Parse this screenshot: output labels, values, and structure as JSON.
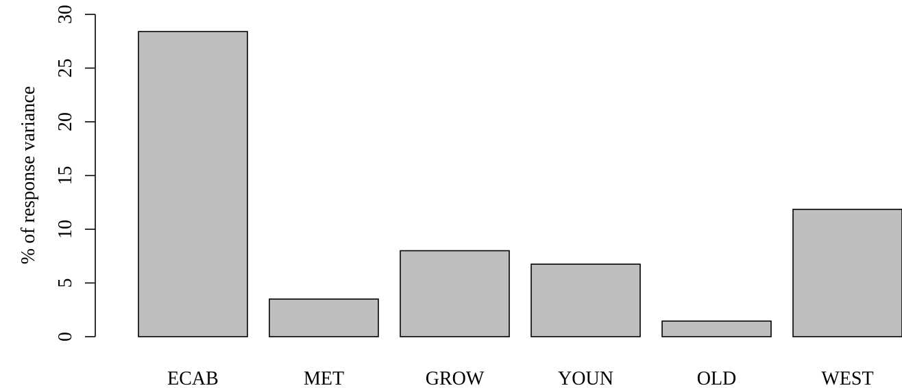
{
  "chart_data": {
    "type": "bar",
    "categories": [
      "ECAB",
      "MET",
      "GROW",
      "YOUN",
      "OLD",
      "WEST"
    ],
    "values": [
      28.4,
      3.5,
      8.0,
      6.75,
      1.45,
      11.85
    ],
    "title": "",
    "xlabel": "",
    "ylabel": "% of response variance",
    "ylim": [
      0,
      30
    ],
    "yticks": [
      0,
      5,
      10,
      15,
      20,
      25,
      30
    ],
    "grid": false,
    "legend": "none",
    "bar_color": "#bebebe",
    "border_color": "#000000"
  }
}
